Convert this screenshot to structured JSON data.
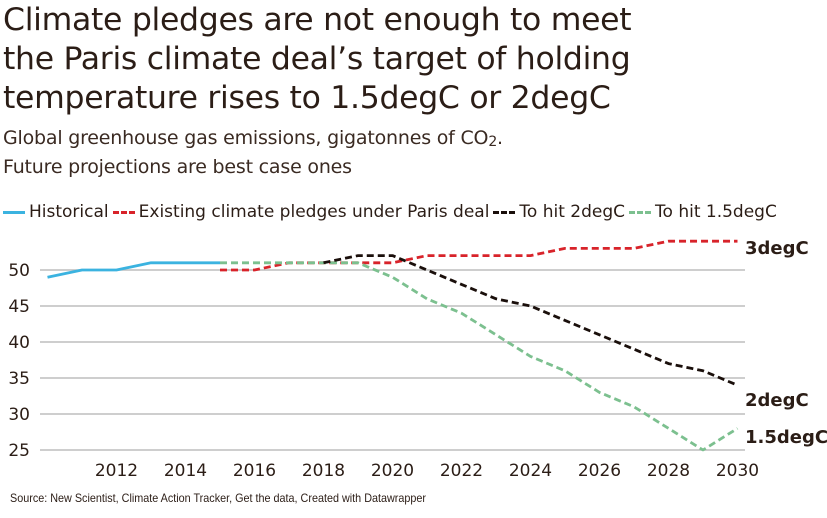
{
  "title": {
    "lines": [
      "Climate pledges are not enough to meet",
      "the Paris climate deal’s target of holding",
      "temperature rises to 1.5degC or 2degC"
    ]
  },
  "subtitle": {
    "line1_prefix": "Global greenhouse gas emissions, gigatonnes of CO",
    "line1_sub": "2",
    "line1_suffix": ".",
    "line2": "Future projections are best case ones"
  },
  "legend": [
    {
      "label": "Historical",
      "series": "historical"
    },
    {
      "label": "Existing climate pledges under Paris deal",
      "series": "pledges"
    },
    {
      "label": "To hit 2degC",
      "series": "two_deg"
    },
    {
      "label": "To hit 1.5degC",
      "series": "one_five_deg"
    }
  ],
  "footer": {
    "source_prefix": "Source: ",
    "sources": "New Scientist, Climate Action Tracker",
    "get_data": "Get the data",
    "created_with": "Created with Datawrapper",
    "separator": ", "
  },
  "colors": {
    "historical": "#3bb3e0",
    "pledges": "#d8232a",
    "two_deg": "#1a0f0b",
    "one_five_deg": "#7cc08f",
    "grid": "#bdbdbd",
    "text": "#2b1d16"
  },
  "chart_data": {
    "type": "line",
    "title": "Climate pledges are not enough to meet the Paris climate deal’s target of holding temperature rises to 1.5degC or 2degC",
    "subtitle": "Global greenhouse gas emissions, gigatonnes of CO2. Future projections are best case ones",
    "xlabel": "",
    "ylabel": "",
    "xlim": [
      2010,
      2030
    ],
    "ylim": [
      25,
      52.5
    ],
    "x_ticks": [
      2012,
      2014,
      2016,
      2018,
      2020,
      2022,
      2024,
      2026,
      2028,
      2030
    ],
    "y_ticks": [
      25,
      30,
      35,
      40,
      45,
      50
    ],
    "grid": "horizontal",
    "legend_position": "top",
    "series": [
      {
        "name": "Historical",
        "key": "historical",
        "style": "solid",
        "end_label": "",
        "points": [
          [
            2010,
            49
          ],
          [
            2011,
            50
          ],
          [
            2012,
            50
          ],
          [
            2013,
            51
          ],
          [
            2014,
            51
          ],
          [
            2015,
            51
          ]
        ]
      },
      {
        "name": "Existing climate pledges under Paris deal",
        "key": "pledges",
        "style": "dashed",
        "end_label": "3degC",
        "points": [
          [
            2015,
            50
          ],
          [
            2016,
            50
          ],
          [
            2017,
            51
          ],
          [
            2018,
            51
          ],
          [
            2019,
            51
          ],
          [
            2020,
            51
          ],
          [
            2021,
            52
          ],
          [
            2022,
            52
          ],
          [
            2023,
            52
          ],
          [
            2024,
            52
          ],
          [
            2025,
            53
          ],
          [
            2026,
            53
          ],
          [
            2027,
            53
          ],
          [
            2028,
            54
          ],
          [
            2029,
            54
          ],
          [
            2030,
            54
          ]
        ]
      },
      {
        "name": "To hit 2degC",
        "key": "two_deg",
        "style": "dashed",
        "end_label": "2degC",
        "points": [
          [
            2018,
            51
          ],
          [
            2019,
            52
          ],
          [
            2020,
            52
          ],
          [
            2021,
            50
          ],
          [
            2022,
            48
          ],
          [
            2023,
            46
          ],
          [
            2024,
            45
          ],
          [
            2025,
            43
          ],
          [
            2026,
            41
          ],
          [
            2027,
            39
          ],
          [
            2028,
            37
          ],
          [
            2029,
            36
          ],
          [
            2030,
            34
          ]
        ]
      },
      {
        "name": "To hit 1.5degC",
        "key": "one_five_deg",
        "style": "dashed",
        "end_label": "1.5degC",
        "points": [
          [
            2015,
            51
          ],
          [
            2016,
            51
          ],
          [
            2017,
            51
          ],
          [
            2018,
            51
          ],
          [
            2019,
            51
          ],
          [
            2020,
            49
          ],
          [
            2021,
            46
          ],
          [
            2022,
            44
          ],
          [
            2023,
            41
          ],
          [
            2024,
            38
          ],
          [
            2025,
            36
          ],
          [
            2026,
            33
          ],
          [
            2027,
            31
          ],
          [
            2028,
            28
          ],
          [
            2029,
            25
          ],
          [
            2030,
            28
          ]
        ]
      }
    ]
  }
}
